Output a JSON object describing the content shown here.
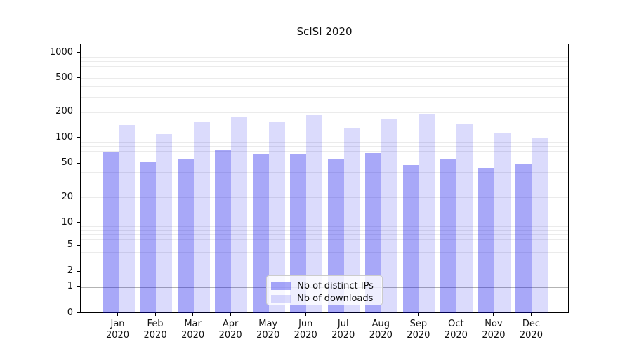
{
  "chart_data": {
    "type": "bar",
    "title": "ScISI 2020",
    "xlabel": "",
    "ylabel": "",
    "y_scale": "symlog",
    "grid": true,
    "legend_position": "lower center",
    "categories": [
      "Jan",
      "Feb",
      "Mar",
      "Apr",
      "May",
      "Jun",
      "Jul",
      "Aug",
      "Sep",
      "Oct",
      "Nov",
      "Dec"
    ],
    "category_year": "2020",
    "y_tick_labels": [
      "1000",
      "500",
      "200",
      "100",
      "50",
      "20",
      "10",
      "5",
      "2",
      "1",
      "0"
    ],
    "y_ticks": [
      1000,
      500,
      200,
      100,
      50,
      20,
      10,
      5,
      2,
      1,
      0
    ],
    "ylim": [
      0,
      1300
    ],
    "series": [
      {
        "name": "Nb of distinct IPs",
        "color": "rgba(0, 0, 235, 0.34)",
        "values": [
          69,
          52,
          56,
          74,
          64,
          65,
          57,
          67,
          48,
          57,
          44,
          49
        ]
      },
      {
        "name": "Nb of downloads",
        "color": "rgba(0, 0, 235, 0.14)",
        "values": [
          143,
          112,
          153,
          179,
          154,
          185,
          130,
          166,
          194,
          145,
          116,
          101
        ]
      }
    ]
  },
  "colors": {
    "grid_major": "#b3b3b3",
    "grid_minor": "#ebebeb",
    "spine": "#000000",
    "text": "#111111",
    "legend_border": "#cccccc"
  }
}
